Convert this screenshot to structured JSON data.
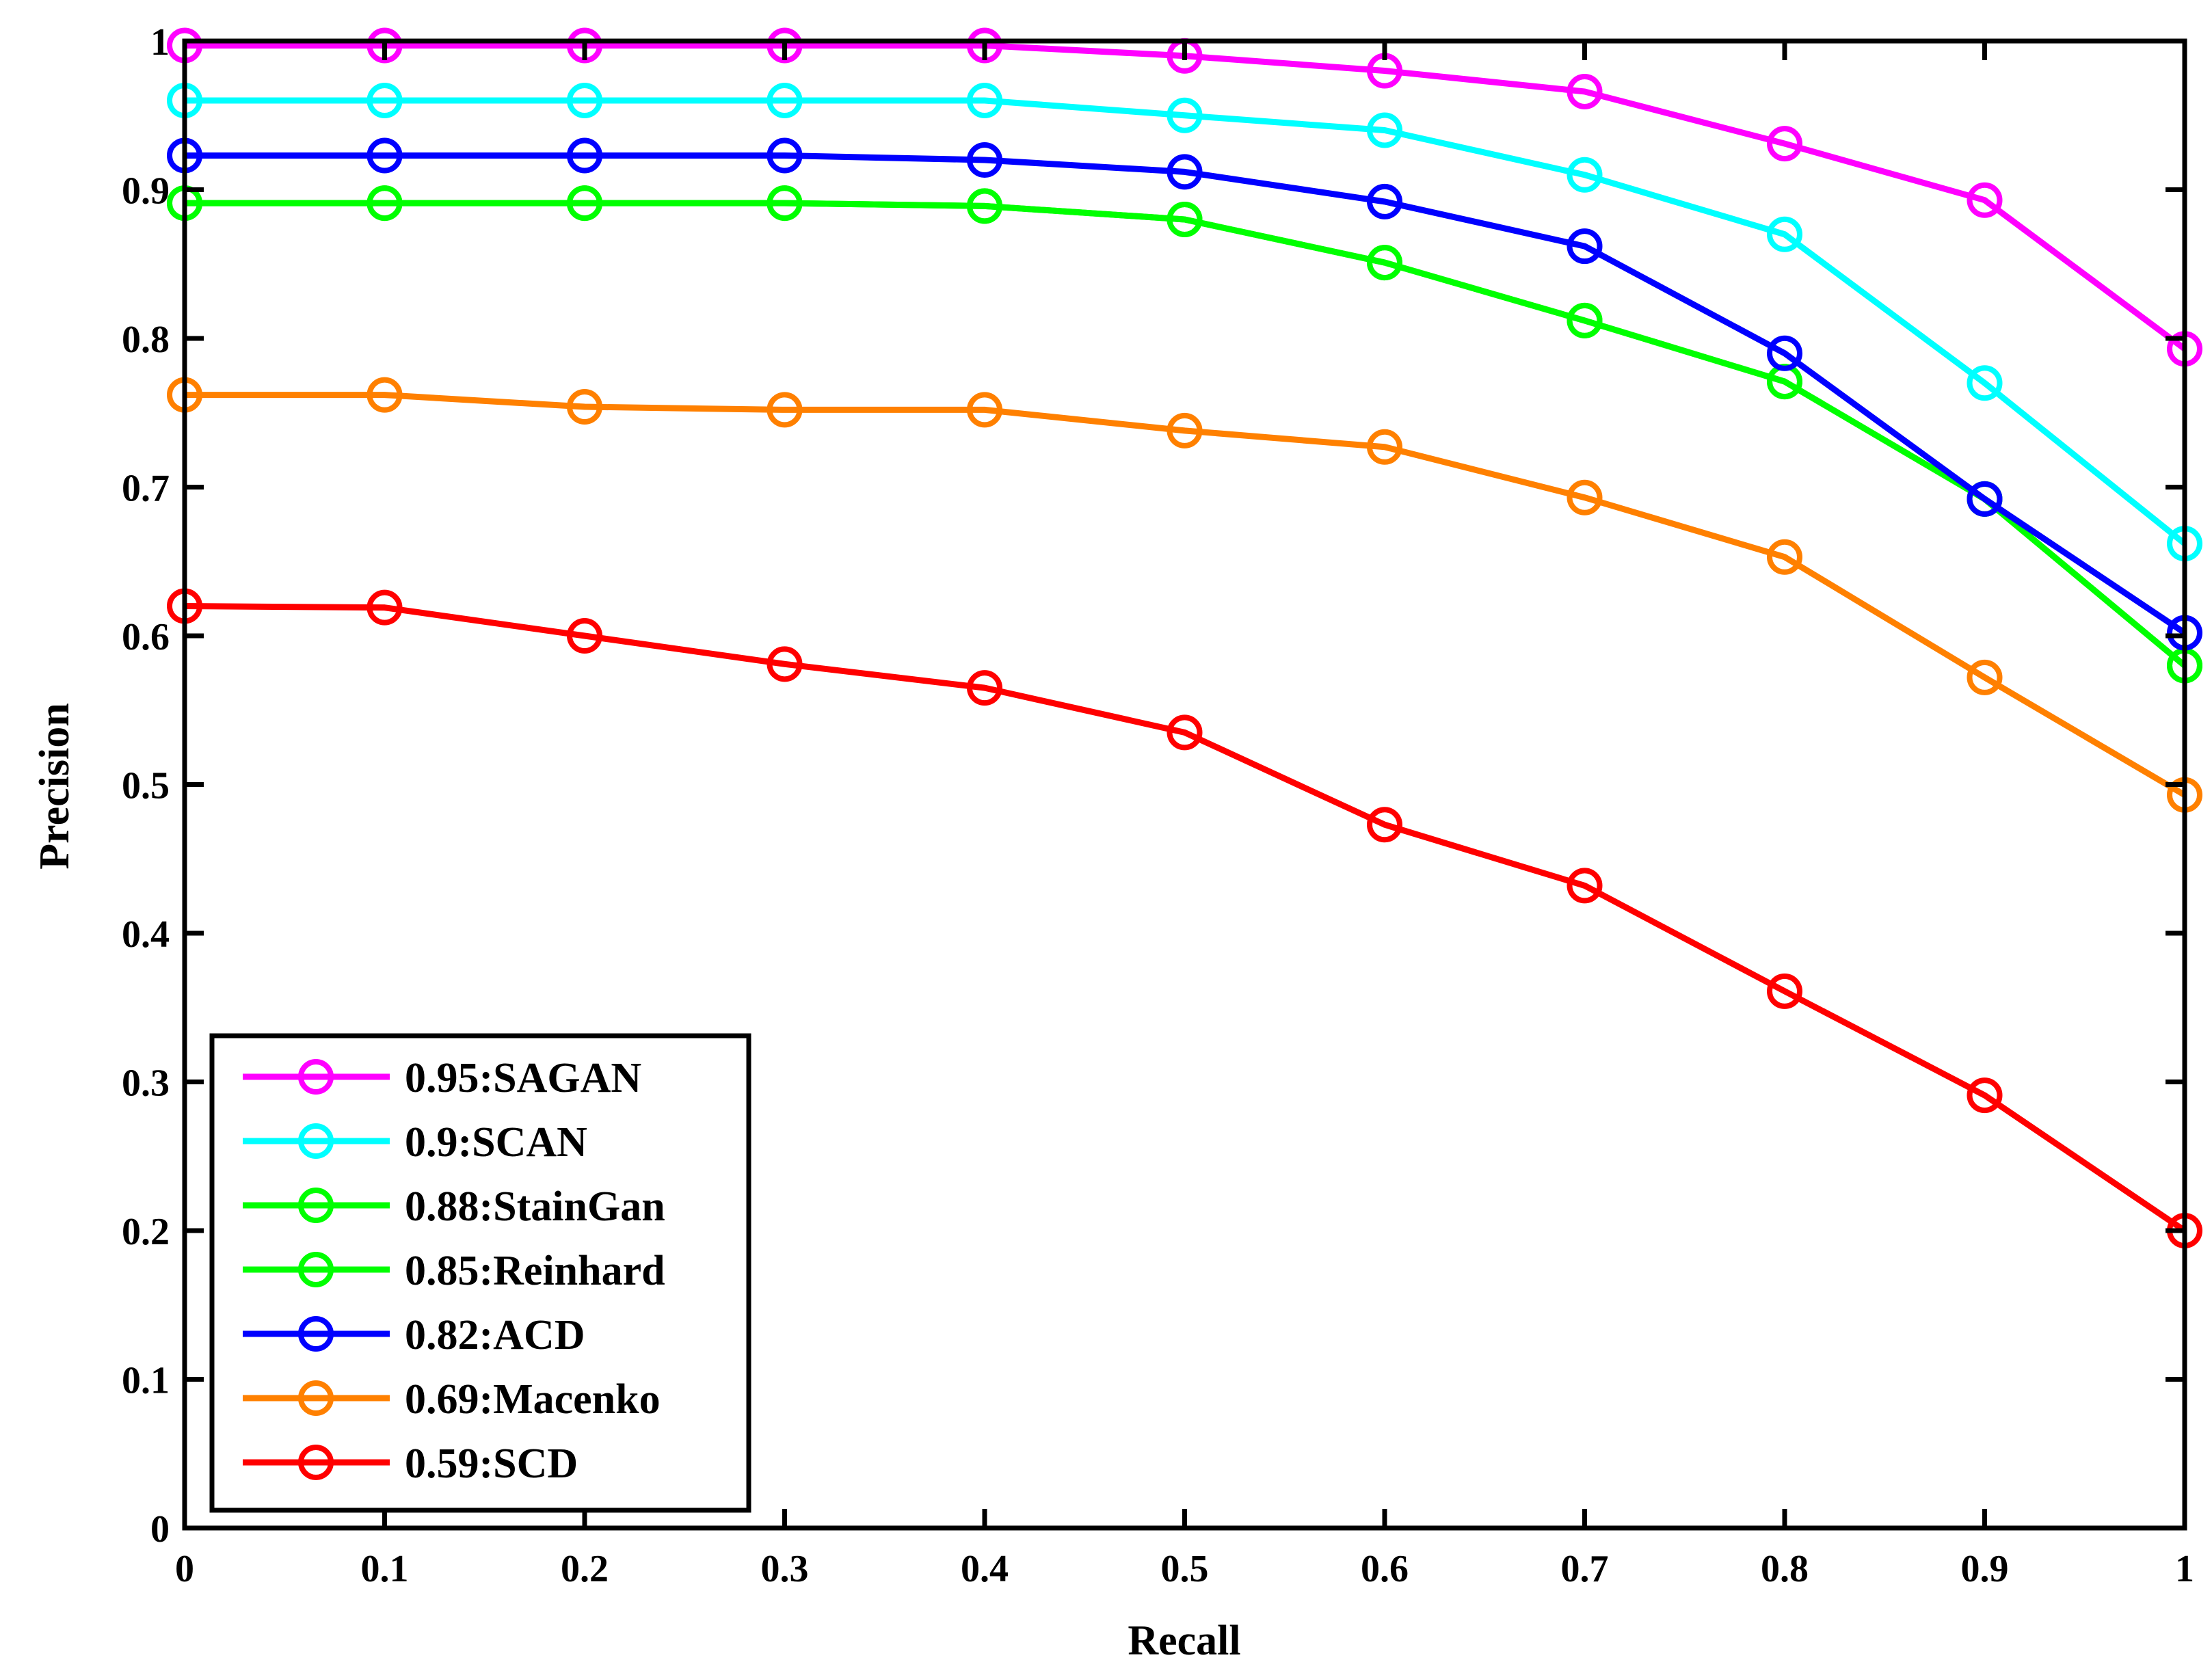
{
  "chart_data": {
    "type": "line",
    "title": "",
    "xlabel": "Recall",
    "ylabel": "Precision",
    "xlim": [
      0,
      1
    ],
    "ylim": [
      0,
      1
    ],
    "x": [
      0,
      0.1,
      0.2,
      0.3,
      0.4,
      0.5,
      0.6,
      0.7,
      0.8,
      0.9,
      1
    ],
    "x_tick_labels": [
      "0",
      "0.1",
      "0.2",
      "0.3",
      "0.4",
      "0.5",
      "0.6",
      "0.7",
      "0.8",
      "0.9",
      "1"
    ],
    "y_ticks": [
      0,
      0.1,
      0.2,
      0.3,
      0.4,
      0.5,
      0.6,
      0.7,
      0.8,
      0.9,
      1
    ],
    "y_tick_labels": [
      "0",
      "0.1",
      "0.2",
      "0.3",
      "0.4",
      "0.5",
      "0.6",
      "0.7",
      "0.8",
      "0.9",
      "1"
    ],
    "grid": false,
    "legend_position": "bottom-left",
    "series": [
      {
        "name": "0.95:SAGAN",
        "color": "#ff00ff",
        "values": [
          0.997,
          0.997,
          0.997,
          0.997,
          0.997,
          0.99,
          0.98,
          0.966,
          0.931,
          0.893,
          0.793
        ]
      },
      {
        "name": "0.9:SCAN",
        "color": "#00ffff",
        "values": [
          0.96,
          0.96,
          0.96,
          0.96,
          0.96,
          0.95,
          0.94,
          0.91,
          0.87,
          0.77,
          0.662
        ]
      },
      {
        "name": "0.88:StainGan",
        "color": "#00ff00",
        "values": [
          0.891,
          0.891,
          0.891,
          0.891,
          0.889,
          0.88,
          0.851,
          0.812,
          0.771,
          0.692,
          0.58
        ]
      },
      {
        "name": "0.85:Reinhard",
        "color": "#00ff00",
        "values": [
          0.891,
          0.891,
          0.891,
          0.891,
          0.889,
          0.88,
          0.851,
          0.812,
          0.771,
          0.692,
          0.58
        ]
      },
      {
        "name": "0.82:ACD",
        "color": "#0000ff",
        "values": [
          0.923,
          0.923,
          0.923,
          0.923,
          0.92,
          0.912,
          0.892,
          0.862,
          0.79,
          0.692,
          0.602
        ]
      },
      {
        "name": "0.69:Macenko",
        "color": "#ff8000",
        "values": [
          0.762,
          0.762,
          0.754,
          0.752,
          0.752,
          0.738,
          0.727,
          0.693,
          0.653,
          0.572,
          0.493
        ]
      },
      {
        "name": "0.59:SCD",
        "color": "#ff0000",
        "values": [
          0.62,
          0.619,
          0.6,
          0.581,
          0.565,
          0.535,
          0.473,
          0.432,
          0.361,
          0.291,
          0.2
        ]
      }
    ]
  }
}
